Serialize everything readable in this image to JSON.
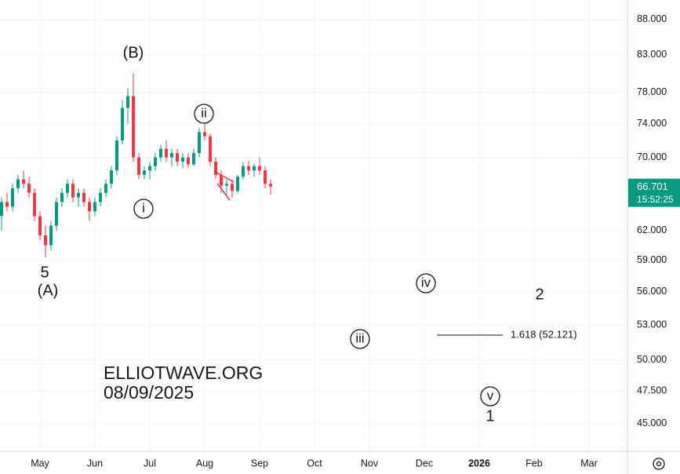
{
  "chart_data": {
    "type": "candlestick",
    "categories": [
      null,
      null,
      null,
      null,
      null,
      null,
      null,
      "May",
      null,
      null,
      null,
      null,
      null,
      null,
      null,
      null,
      null,
      "Jun",
      null,
      null,
      null,
      null,
      null,
      null,
      null,
      null,
      null,
      "Jul",
      null,
      null,
      null,
      null,
      null,
      null,
      null,
      null,
      null,
      "Aug",
      null,
      null,
      null,
      null,
      null,
      null,
      null,
      null,
      null,
      "Sep",
      null,
      null,
      null,
      null,
      null,
      null,
      null,
      null,
      null,
      "Oct",
      null,
      null,
      null,
      null,
      null,
      null,
      null,
      null,
      null,
      "Nov",
      null,
      null,
      null,
      null,
      null,
      null,
      null,
      null,
      null,
      "Dec",
      null,
      null,
      null,
      null,
      null,
      null,
      null,
      null,
      null,
      "2026",
      null,
      null,
      null,
      null,
      null,
      null,
      null,
      null,
      null,
      "Feb",
      null,
      null,
      null,
      null,
      null,
      null,
      null,
      null,
      null,
      "Mar",
      null,
      null,
      null,
      null,
      null,
      null
    ],
    "open": [
      63.5,
      65,
      64.5,
      66.5,
      67.5,
      67,
      66,
      63.5,
      61.5,
      60.5,
      62.5,
      65,
      66,
      67,
      65.5,
      66,
      65,
      64,
      65,
      66,
      67,
      68.5,
      72,
      76,
      77.5,
      70,
      68,
      68.5,
      69,
      70,
      71,
      70,
      70.5,
      69.5,
      70,
      69.2,
      70.5,
      73,
      72.5,
      69.5,
      68,
      66.8,
      67,
      66.2,
      67.8,
      69,
      68.5,
      69,
      68.5,
      67,
      null,
      null,
      null,
      null,
      null,
      null,
      null,
      null,
      null,
      null,
      null,
      null,
      null,
      null,
      null,
      null,
      null,
      null,
      null,
      null,
      null,
      null,
      null,
      null,
      null,
      null,
      null,
      null,
      null,
      null,
      null,
      null,
      null,
      null,
      null,
      null,
      null,
      null,
      null,
      null,
      null,
      null,
      null,
      null,
      null,
      null,
      null,
      null,
      null,
      null,
      null,
      null,
      null,
      null,
      null,
      null,
      null,
      null,
      null,
      null,
      null,
      null,
      null,
      null
    ],
    "high": [
      65.5,
      66,
      67,
      68,
      68.5,
      67.8,
      66.5,
      64,
      62.5,
      63,
      65.5,
      66.5,
      67.5,
      67.5,
      66.5,
      66.5,
      65.5,
      65.5,
      66.5,
      67.5,
      69,
      72.5,
      77,
      78.5,
      80.5,
      70.5,
      69,
      69.5,
      70.5,
      71.5,
      72,
      71,
      71,
      70.5,
      70.5,
      71,
      73.5,
      74,
      72.8,
      70,
      68.5,
      67.5,
      67.5,
      68,
      69.5,
      69.6,
      69.3,
      70,
      69,
      67.5,
      null,
      null,
      null,
      null,
      null,
      null,
      null,
      null,
      null,
      null,
      null,
      null,
      null,
      null,
      null,
      null,
      null,
      null,
      null,
      null,
      null,
      null,
      null,
      null,
      null,
      null,
      null,
      null,
      null,
      null,
      null,
      null,
      null,
      null,
      null,
      null,
      null,
      null,
      null,
      null,
      null,
      null,
      null,
      null,
      null,
      null,
      null,
      null,
      null,
      null,
      null,
      null,
      null,
      null,
      null,
      null,
      null,
      null,
      null,
      null,
      null,
      null,
      null,
      null
    ],
    "low": [
      62,
      64,
      64,
      66,
      66.5,
      65.5,
      63,
      61,
      59.3,
      60,
      62,
      64.5,
      65.5,
      65,
      64.5,
      64.5,
      63,
      63.5,
      64.5,
      65.5,
      66.5,
      68,
      71.5,
      74,
      69.5,
      67.5,
      67.5,
      67.5,
      68.5,
      69.5,
      69.5,
      69,
      69,
      68.8,
      68.8,
      69,
      70,
      72,
      69,
      67.5,
      66,
      65.8,
      65.5,
      66,
      67.5,
      68,
      67.8,
      68,
      66.5,
      65.8,
      null,
      null,
      null,
      null,
      null,
      null,
      null,
      null,
      null,
      null,
      null,
      null,
      null,
      null,
      null,
      null,
      null,
      null,
      null,
      null,
      null,
      null,
      null,
      null,
      null,
      null,
      null,
      null,
      null,
      null,
      null,
      null,
      null,
      null,
      null,
      null,
      null,
      null,
      null,
      null,
      null,
      null,
      null,
      null,
      null,
      null,
      null,
      null,
      null,
      null,
      null,
      null,
      null,
      null,
      null,
      null,
      null,
      null,
      null,
      null,
      null,
      null,
      null,
      null
    ],
    "close": [
      65,
      64.5,
      66.5,
      67.5,
      67,
      66,
      63.5,
      61.5,
      60.5,
      62.5,
      65,
      66,
      67,
      65.5,
      66,
      65,
      64,
      65,
      66,
      67,
      68.5,
      72,
      76,
      77.5,
      70,
      68,
      68.5,
      69,
      70,
      71,
      70,
      70.5,
      69.5,
      70,
      69.2,
      70.5,
      73,
      72.5,
      69.5,
      68,
      66.8,
      67,
      66.2,
      67.8,
      69,
      68.5,
      69,
      68.5,
      67,
      66.7,
      null,
      null,
      null,
      null,
      null,
      null,
      null,
      null,
      null,
      null,
      null,
      null,
      null,
      null,
      null,
      null,
      null,
      null,
      null,
      null,
      null,
      null,
      null,
      null,
      null,
      null,
      null,
      null,
      null,
      null,
      null,
      null,
      null,
      null,
      null,
      null,
      null,
      null,
      null,
      null,
      null,
      null,
      null,
      null,
      null,
      null,
      null,
      null,
      null,
      null,
      null,
      null,
      null,
      null,
      null,
      null,
      null,
      null,
      null,
      null,
      null,
      null,
      null,
      null
    ],
    "up_color": "#089981",
    "down_color": "#f23645",
    "log_scale": true,
    "grid": true,
    "ylim": [
      42.98,
      90.9
    ],
    "yticks": [
      {
        "value": 45,
        "label": "45.000"
      },
      {
        "value": 47.5,
        "label": "47.500"
      },
      {
        "value": 50,
        "label": "50.000"
      },
      {
        "value": 53,
        "label": "53.000"
      },
      {
        "value": 56,
        "label": "56.000"
      },
      {
        "value": 59,
        "label": "59.000"
      },
      {
        "value": 62,
        "label": "62.000"
      },
      {
        "value": 70,
        "label": "70.000"
      },
      {
        "value": 74,
        "label": "74.000"
      },
      {
        "value": 78,
        "label": "78.000"
      },
      {
        "value": 83,
        "label": "83.000"
      },
      {
        "value": 88,
        "label": "88.000"
      }
    ],
    "last_price": 66.701,
    "countdown": "15:52:25",
    "fib": {
      "value": 52.121,
      "label": "1.618 (52.121)"
    },
    "annotations": [
      "(B)",
      "ii",
      "i",
      "5",
      "(A)",
      "iv",
      "2",
      "iii",
      "v",
      "1"
    ],
    "watermark": [
      "ELLIOTWAVE.ORG",
      "08/09/2025"
    ]
  }
}
